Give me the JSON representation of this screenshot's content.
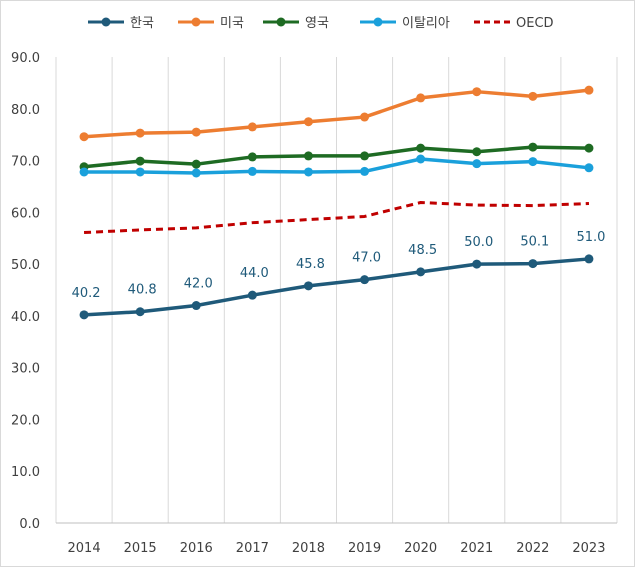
{
  "chart_data": {
    "type": "line",
    "categories": [
      "2014",
      "2015",
      "2016",
      "2017",
      "2018",
      "2019",
      "2020",
      "2021",
      "2022",
      "2023"
    ],
    "ylim": [
      0,
      90
    ],
    "yticks": [
      "0.0",
      "10.0",
      "20.0",
      "30.0",
      "40.0",
      "50.0",
      "60.0",
      "70.0",
      "80.0",
      "90.0"
    ],
    "grid": "vertical",
    "legend_position": "top",
    "series": [
      {
        "name": "한국",
        "color": "#1f5a7a",
        "style": "solid-marker",
        "values": [
          40.2,
          40.8,
          42.0,
          44.0,
          45.8,
          47.0,
          48.5,
          50.0,
          50.1,
          51.0
        ],
        "labels": [
          "40.2",
          "40.8",
          "42.0",
          "44.0",
          "45.8",
          "47.0",
          "48.5",
          "50.0",
          "50.1",
          "51.0"
        ]
      },
      {
        "name": "미국",
        "color": "#ed7d31",
        "style": "solid-marker",
        "values": [
          74.6,
          75.3,
          75.5,
          76.5,
          77.5,
          78.4,
          82.1,
          83.3,
          82.4,
          83.6
        ]
      },
      {
        "name": "영국",
        "color": "#1e6b23",
        "style": "solid-marker",
        "values": [
          68.8,
          69.9,
          69.3,
          70.7,
          70.9,
          70.9,
          72.4,
          71.7,
          72.6,
          72.4
        ]
      },
      {
        "name": "이탈리아",
        "color": "#1aa0db",
        "style": "solid-marker",
        "values": [
          67.8,
          67.8,
          67.6,
          67.9,
          67.8,
          67.9,
          70.3,
          69.4,
          69.8,
          68.6
        ]
      },
      {
        "name": "OECD",
        "color": "#c00000",
        "style": "dashed",
        "values": [
          56.1,
          56.6,
          57.0,
          58.0,
          58.6,
          59.2,
          61.9,
          61.4,
          61.3,
          61.7
        ]
      }
    ]
  }
}
